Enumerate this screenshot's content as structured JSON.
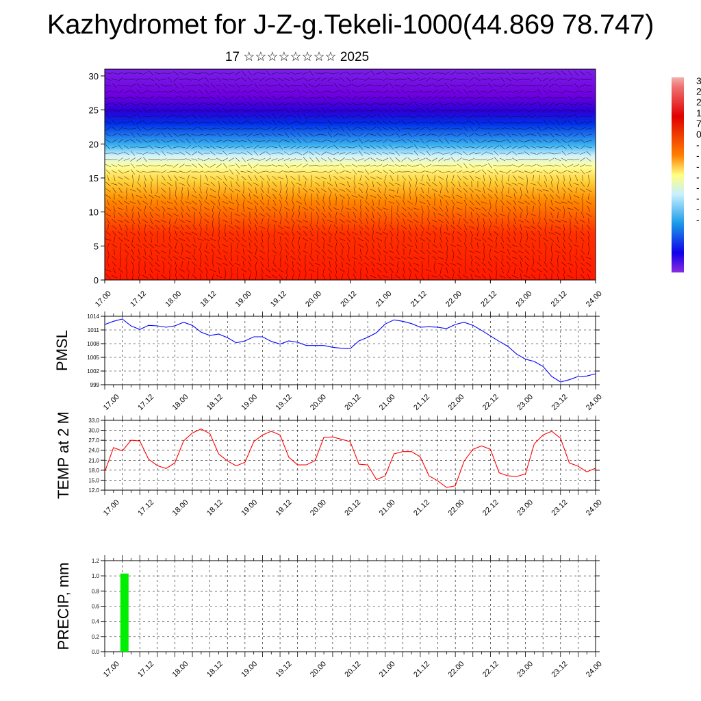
{
  "page": {
    "title": "Kazhydromet for J-Z-g.Tekeli-1000(44.869 78.747)",
    "subtitle": "17 ☆☆☆☆☆☆☆☆ 2025"
  },
  "time_ticks": [
    "17.00",
    "17.12",
    "18.00",
    "18.12",
    "19.00",
    "19.12",
    "20.00",
    "20.12",
    "21.00",
    "21.12",
    "22.00",
    "22.12",
    "23.00",
    "23.12",
    "24.00"
  ],
  "colorbar_labels": [
    "3",
    "2",
    "2",
    "1",
    "7",
    "0",
    "-",
    "-",
    "-",
    "-",
    "-",
    "-",
    "-",
    "-"
  ],
  "colors": {
    "pmsl_line": "#0000ff",
    "temp_line": "#ff0000",
    "precip_bar": "#00ee00"
  },
  "chart_data": [
    {
      "type": "heatmap",
      "title": "",
      "xlabel": "",
      "ylabel": "",
      "y_ticks": [
        0,
        5,
        10,
        15,
        20,
        25,
        30
      ],
      "ylim": [
        0,
        31
      ],
      "description_levels": "height levels 0-30 with wind barbs overlay",
      "colorbar_labels": [
        "3",
        "2",
        "2",
        "1",
        "7",
        "0",
        "-",
        "-",
        "-",
        "-",
        "-",
        "-",
        "-",
        "-"
      ],
      "colors_low_to_high": [
        "#7000e0",
        "#0000e0",
        "#3a9cf0",
        "#c8f0ff",
        "#ffffa0",
        "#ffd020",
        "#ff8000",
        "#ff1800"
      ]
    },
    {
      "type": "line",
      "ylabel": "PMSL",
      "y_ticks": [
        "1014",
        "1011",
        "1008",
        "1005",
        "1002",
        "999"
      ],
      "ylim": [
        999,
        1014
      ],
      "x": [
        0,
        3,
        6,
        9,
        12,
        15,
        18,
        21,
        24,
        27,
        30,
        33,
        36,
        39,
        42,
        45,
        48,
        51,
        54,
        57,
        60,
        63,
        66,
        69,
        72,
        75,
        78,
        81,
        84,
        87,
        90,
        93,
        96,
        99,
        102,
        105,
        108,
        111,
        114,
        117,
        120,
        123,
        126,
        129,
        132,
        135,
        138,
        141,
        144,
        147,
        150,
        153,
        156,
        159,
        162,
        165,
        168
      ],
      "values": [
        1012.2,
        1012.9,
        1013.4,
        1011.9,
        1011.1,
        1012,
        1011.9,
        1011.6,
        1011.9,
        1012.7,
        1012.0,
        1010.5,
        1009.8,
        1010.1,
        1009.3,
        1008.2,
        1008.6,
        1009.5,
        1009.5,
        1008.5,
        1007.9,
        1008.6,
        1008.3,
        1007.6,
        1007.6,
        1007.6,
        1007.2,
        1007.0,
        1006.9,
        1008.6,
        1009.4,
        1010.4,
        1012.3,
        1013.2,
        1012.9,
        1012.4,
        1011.6,
        1011.7,
        1011.6,
        1011.3,
        1012.2,
        1012.7,
        1012.0,
        1010.9,
        1009.7,
        1008.5,
        1007.4,
        1005.7,
        1004.6,
        1004.1,
        1003.0,
        1000.8,
        999.6,
        1000.1,
        1000.8,
        1000.9,
        1001.4
      ]
    },
    {
      "type": "line",
      "ylabel": "TEMP at 2 M",
      "y_ticks": [
        "33.0",
        "30.0",
        "27.0",
        "24.0",
        "21.0",
        "18.0",
        "15.0",
        "12.0"
      ],
      "ylim": [
        12,
        33
      ],
      "x": [
        0,
        3,
        6,
        9,
        12,
        15,
        18,
        21,
        24,
        27,
        30,
        33,
        36,
        39,
        42,
        45,
        48,
        51,
        54,
        57,
        60,
        63,
        66,
        69,
        72,
        75,
        78,
        81,
        84,
        87,
        90,
        93,
        96,
        99,
        102,
        105,
        108,
        111,
        114,
        117,
        120,
        123,
        126,
        129,
        132,
        135,
        138,
        141,
        144,
        147,
        150,
        153,
        156,
        159,
        162,
        165,
        168
      ],
      "values": [
        17.5,
        24.8,
        23.8,
        27.0,
        26.8,
        21.3,
        19.4,
        18.5,
        20.2,
        26.8,
        29.2,
        30.4,
        29.0,
        22.9,
        20.8,
        19.3,
        20.4,
        26.6,
        28.6,
        29.7,
        28.6,
        21.9,
        19.6,
        19.6,
        20.9,
        27.9,
        28.0,
        27.3,
        26.6,
        19.8,
        19.6,
        15.2,
        16.3,
        22.9,
        23.6,
        23.6,
        22.0,
        16.3,
        14.8,
        12.8,
        13.3,
        20.7,
        24.3,
        25.3,
        24.3,
        17.2,
        16.3,
        16.1,
        16.9,
        25.9,
        28.6,
        29.7,
        27.6,
        20.2,
        19.2,
        17.5,
        18.6
      ]
    },
    {
      "type": "bar",
      "ylabel": "PRECIP, mm",
      "y_ticks": [
        "1.2",
        "1.0",
        "0.8",
        "0.6",
        "0.4",
        "0.2",
        "0.0"
      ],
      "ylim": [
        0,
        1.2
      ],
      "x": [
        3
      ],
      "values": [
        1.03
      ]
    }
  ]
}
